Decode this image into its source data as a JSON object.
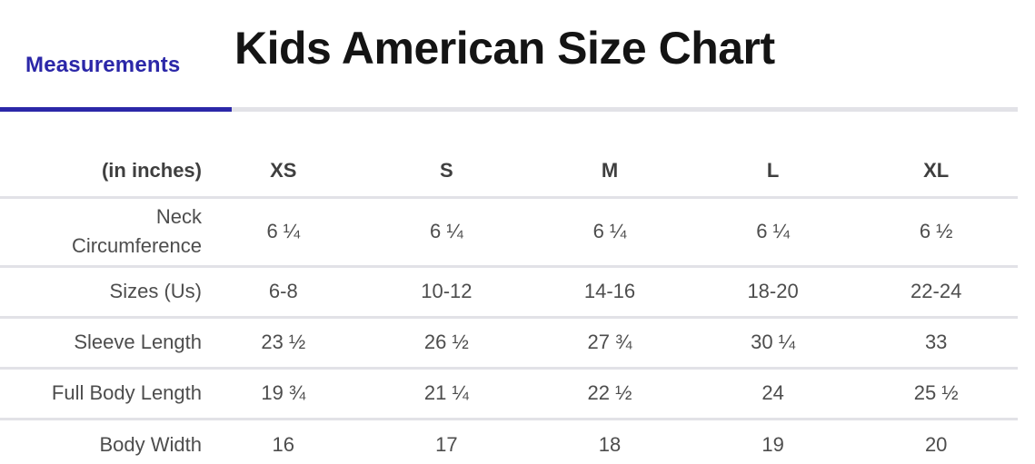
{
  "colors": {
    "accent": "#2b27a8",
    "divider": "#e2e2e7",
    "title": "#141414"
  },
  "tabs": {
    "measurements": {
      "label": "Measurements",
      "active": true
    }
  },
  "page": {
    "title": "Kids American Size Chart"
  },
  "size_table": {
    "unit_label": "(in inches)",
    "columns": [
      "XS",
      "S",
      "M",
      "L",
      "XL"
    ],
    "rows": [
      {
        "label": "Neck Circumference",
        "values": [
          "6 ¼",
          "6 ¼",
          "6 ¼",
          "6 ¼",
          "6 ½"
        ]
      },
      {
        "label": "Sizes (Us)",
        "values": [
          "6-8",
          "10-12",
          "14-16",
          "18-20",
          "22-24"
        ]
      },
      {
        "label": "Sleeve Length",
        "values": [
          "23 ½",
          "26 ½",
          "27 ¾",
          "30 ¼",
          "33"
        ]
      },
      {
        "label": "Full Body Length",
        "values": [
          "19 ¾",
          "21 ¼",
          "22 ½",
          "24",
          "25 ½"
        ]
      },
      {
        "label": "Body Width",
        "values": [
          "16",
          "17",
          "18",
          "19",
          "20"
        ]
      }
    ]
  },
  "chart_data": {
    "type": "table",
    "title": "Kids American Size Chart",
    "unit": "(in inches)",
    "columns": [
      "XS",
      "S",
      "M",
      "L",
      "XL"
    ],
    "rows": [
      {
        "label": "Neck Circumference",
        "values": [
          "6 ¼",
          "6 ¼",
          "6 ¼",
          "6 ¼",
          "6 ½"
        ]
      },
      {
        "label": "Sizes (Us)",
        "values": [
          "6-8",
          "10-12",
          "14-16",
          "18-20",
          "22-24"
        ]
      },
      {
        "label": "Sleeve Length",
        "values": [
          "23 ½",
          "26 ½",
          "27 ¾",
          "30 ¼",
          "33"
        ]
      },
      {
        "label": "Full Body Length",
        "values": [
          "19 ¾",
          "21 ¼",
          "22 ½",
          "24",
          "25 ½"
        ]
      },
      {
        "label": "Body Width",
        "values": [
          "16",
          "17",
          "18",
          "19",
          "20"
        ]
      }
    ]
  }
}
